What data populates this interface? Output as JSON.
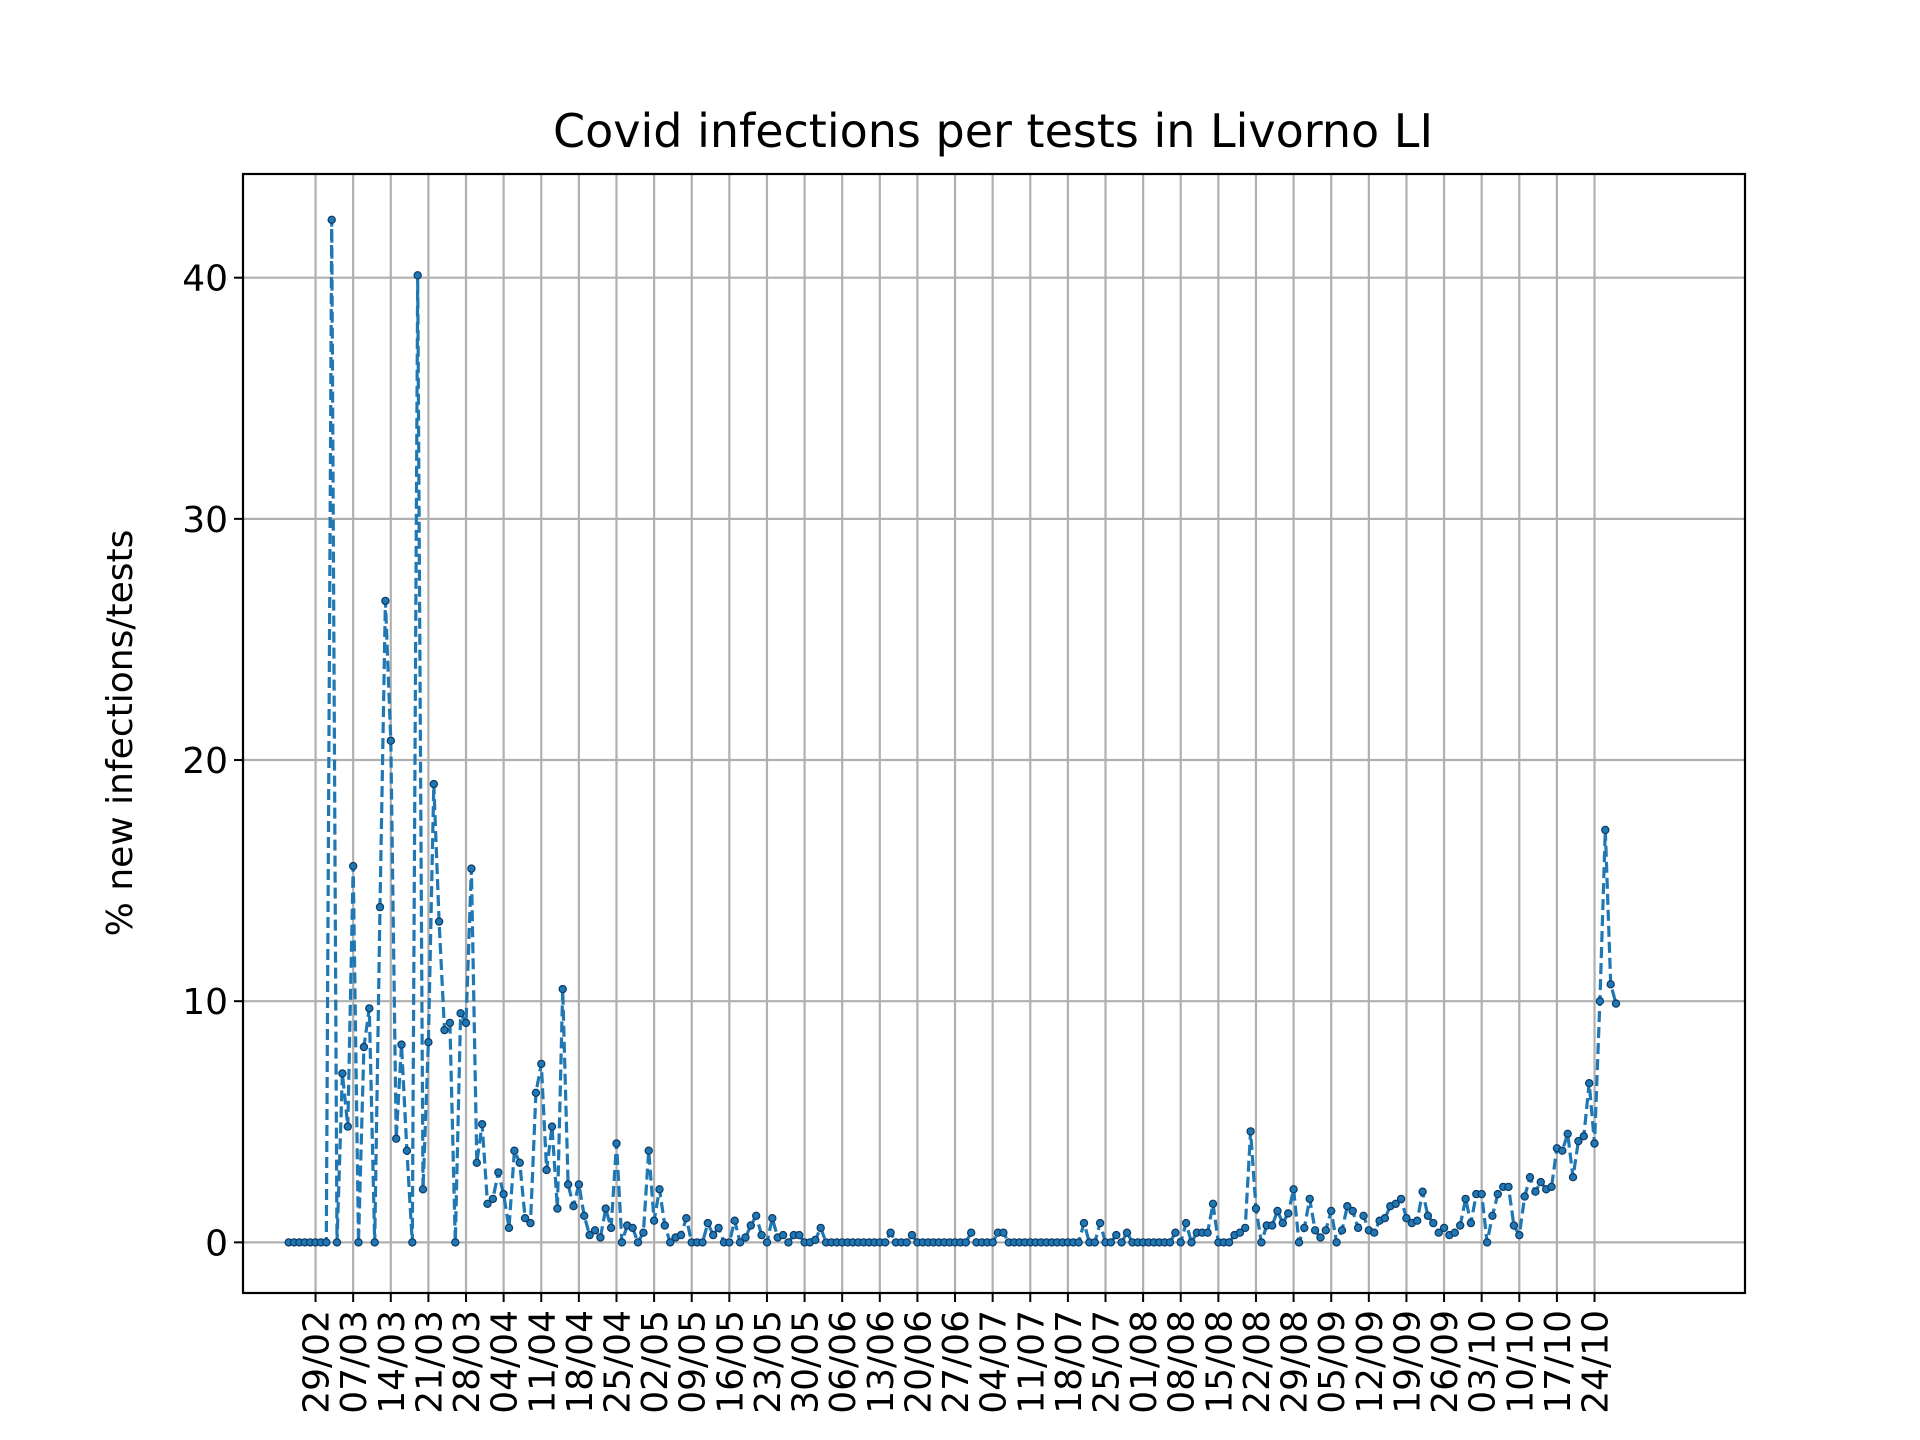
{
  "chart_data": {
    "type": "line",
    "title": "Covid infections per tests in Livorno LI",
    "xlabel": "",
    "ylabel": "% new infections/tests",
    "ylim": [
      -2.1,
      44.3
    ],
    "yticks": [
      0,
      10,
      20,
      30,
      40
    ],
    "ytick_labels": [
      "0",
      "10",
      "20",
      "30",
      "40"
    ],
    "xtick_labels": [
      "29/02",
      "07/03",
      "14/03",
      "21/03",
      "28/03",
      "04/04",
      "11/04",
      "18/04",
      "25/04",
      "02/05",
      "09/05",
      "16/05",
      "23/05",
      "30/05",
      "06/06",
      "13/06",
      "20/06",
      "27/06",
      "04/07",
      "11/07",
      "18/07",
      "25/07",
      "01/08",
      "08/08",
      "15/08",
      "22/08",
      "29/08",
      "05/09",
      "12/09",
      "19/09",
      "26/09",
      "03/10",
      "10/10",
      "17/10",
      "24/10"
    ],
    "grid": true,
    "line_color": "#1f77b4",
    "line_style": "dashed",
    "marker_color": "#1f77b4",
    "x_start": "2020-02-24",
    "series": [
      {
        "values": [
          0,
          0,
          0,
          0,
          0,
          0,
          0,
          0,
          42.4,
          0,
          7.0,
          4.8,
          15.6,
          0,
          8.1,
          9.7,
          0,
          13.9,
          26.6,
          20.8,
          4.3,
          8.2,
          3.8,
          0,
          40.1,
          2.2,
          8.3,
          19.0,
          13.3,
          8.8,
          9.1,
          0,
          9.5,
          9.1,
          15.5,
          3.3,
          4.9,
          1.6,
          1.8,
          2.9,
          2.0,
          0.6,
          3.8,
          3.3,
          1.0,
          0.8,
          6.2,
          7.4,
          3.0,
          4.8,
          1.4,
          10.5,
          2.4,
          1.5,
          2.4,
          1.1,
          0.3,
          0.5,
          0.2,
          1.4,
          0.6,
          4.1,
          0,
          0.7,
          0.6,
          0,
          0.4,
          3.8,
          0.9,
          2.2,
          0.7,
          0,
          0.2,
          0.3,
          1.0,
          0,
          0,
          0,
          0.8,
          0.3,
          0.6,
          0,
          0,
          0.9,
          0,
          0.2,
          0.7,
          1.1,
          0.3,
          0,
          1.0,
          0.2,
          0.3,
          0,
          0.3,
          0.3,
          0,
          0,
          0.1,
          0.6,
          0,
          0,
          0,
          0,
          0,
          0,
          0,
          0,
          0,
          0,
          0,
          0,
          0.4,
          0,
          0,
          0,
          0.3,
          0,
          0,
          0,
          0,
          0,
          0,
          0,
          0,
          0,
          0,
          0.4,
          0,
          0,
          0,
          0,
          0.4,
          0.4,
          0,
          0,
          0,
          0,
          0,
          0,
          0,
          0,
          0,
          0,
          0,
          0,
          0,
          0,
          0.8,
          0,
          0,
          0.8,
          0,
          0,
          0.3,
          0,
          0.4,
          0,
          0,
          0,
          0,
          0,
          0,
          0,
          0,
          0.4,
          0,
          0.8,
          0,
          0.4,
          0.4,
          0.4,
          1.6,
          0,
          0,
          0,
          0.3,
          0.4,
          0.6,
          4.6,
          1.4,
          0,
          0.7,
          0.7,
          1.3,
          0.8,
          1.2,
          2.2,
          0,
          0.6,
          1.8,
          0.5,
          0.2,
          0.5,
          1.3,
          0,
          0.5,
          1.5,
          1.3,
          0.6,
          1.1,
          0.5,
          0.4,
          0.9,
          1.0,
          1.5,
          1.6,
          1.8,
          1.0,
          0.8,
          0.9,
          2.1,
          1.1,
          0.8,
          0.4,
          0.6,
          0.3,
          0.4,
          0.7,
          1.8,
          0.8,
          2.0,
          2.0,
          0,
          1.1,
          2.0,
          2.3,
          2.3,
          0.7,
          0.3,
          1.9,
          2.7,
          2.1,
          2.5,
          2.2,
          2.3,
          3.9,
          3.8,
          4.5,
          2.7,
          4.2,
          4.4,
          6.6,
          4.1,
          10.0,
          17.1,
          10.7,
          9.9
        ]
      }
    ]
  }
}
